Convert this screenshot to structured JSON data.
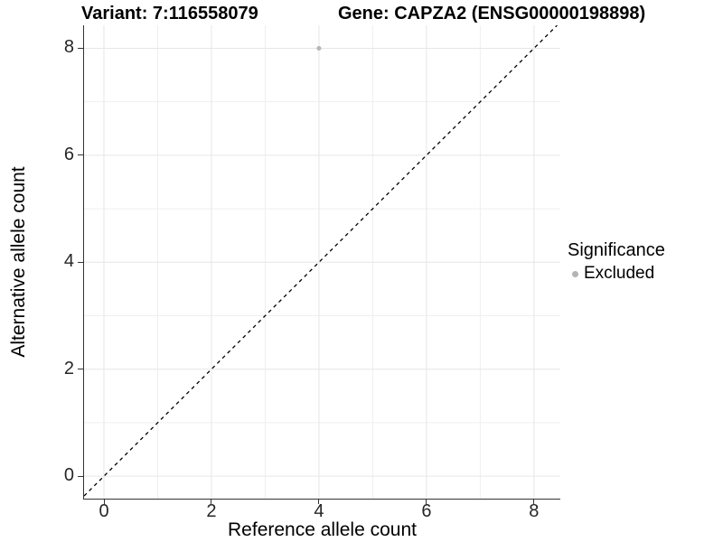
{
  "titles": {
    "left": "Variant: 7:116558079",
    "right": "Gene: CAPZA2 (ENSG00000198898)"
  },
  "axes": {
    "x_title": "Reference allele count",
    "y_title": "Alternative allele count"
  },
  "legend": {
    "title": "Significance",
    "items": [
      {
        "label": "Excluded",
        "color": "#b4b4b4"
      }
    ]
  },
  "colors": {
    "background": "#ffffff",
    "grid_major": "#e6e6e6",
    "grid_minor": "#efefef",
    "axis_line": "#333333",
    "tick_text": "#262626",
    "point": "#b8b8b8",
    "reference_line": "#000000"
  },
  "chart_data": {
    "type": "scatter",
    "title": "Variant: 7:116558079 — Gene: CAPZA2 (ENSG00000198898)",
    "xlabel": "Reference allele count",
    "ylabel": "Alternative allele count",
    "xlim": [
      -0.37,
      8.49
    ],
    "ylim": [
      -0.42,
      8.43
    ],
    "x_ticks": [
      0,
      2,
      4,
      6,
      8
    ],
    "y_ticks": [
      0,
      2,
      4,
      6,
      8
    ],
    "x_minor_grid": [
      1,
      3,
      5,
      7
    ],
    "y_minor_grid": [
      1,
      3,
      5,
      7
    ],
    "grid": true,
    "legend_position": "right",
    "series": [
      {
        "name": "Excluded",
        "color": "#b8b8b8",
        "points": [
          {
            "x": 4,
            "y": 8
          }
        ]
      }
    ],
    "reference_line": {
      "kind": "identity",
      "slope": 1,
      "intercept": 0,
      "style": "dashed",
      "color": "#000000"
    }
  }
}
